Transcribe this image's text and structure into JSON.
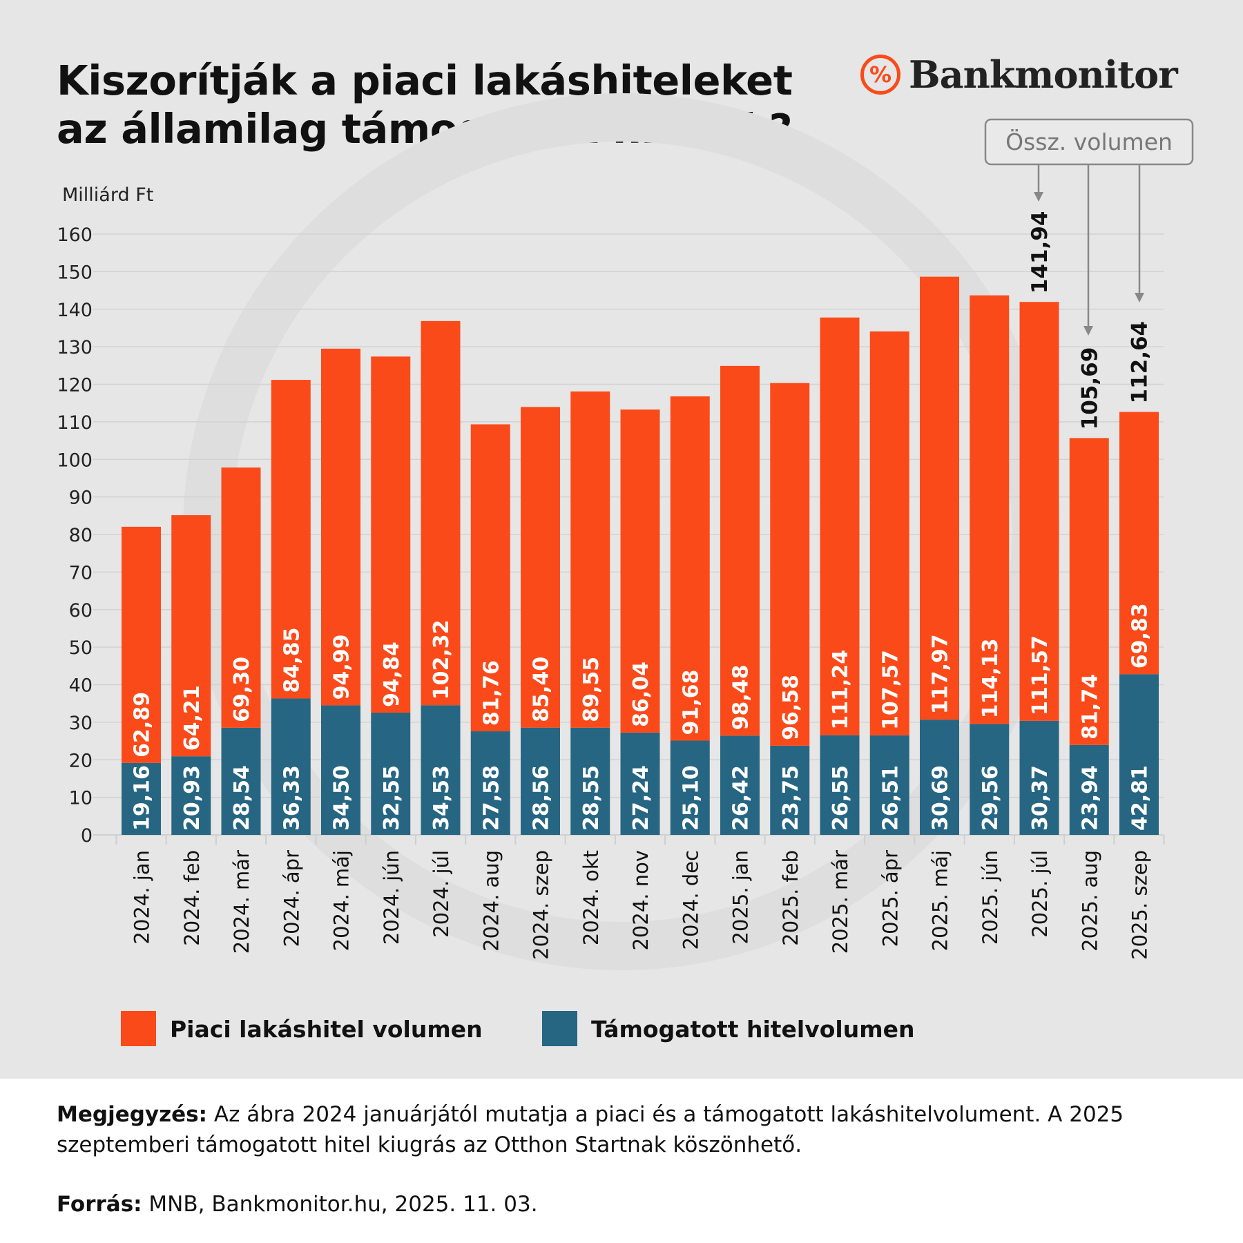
{
  "title_line1": "Kiszorítják a piaci lakáshiteleket",
  "title_line2": "az államilag támogatott hitelek?",
  "logo_text": "Bankmonitor",
  "logo_symbol": "%",
  "chart_data": {
    "type": "bar",
    "stacked": true,
    "ylabel": "Milliárd Ft",
    "ylim": [
      0,
      160
    ],
    "yticks": [
      0,
      10,
      20,
      30,
      40,
      50,
      60,
      70,
      80,
      90,
      100,
      110,
      120,
      130,
      140,
      150,
      160
    ],
    "grid": true,
    "categories": [
      "2024. jan",
      "2024. feb",
      "2024. már",
      "2024. ápr",
      "2024. máj",
      "2024. jún",
      "2024. júl",
      "2024. aug",
      "2024. szep",
      "2024. okt",
      "2024. nov",
      "2024. dec",
      "2025. jan",
      "2025. feb",
      "2025. már",
      "2025. ápr",
      "2025. máj",
      "2025. jún",
      "2025. júl",
      "2025. aug",
      "2025. szep"
    ],
    "series": [
      {
        "name": "Támogatott hitelvolumen",
        "color": "#266683",
        "values": [
          19.16,
          20.93,
          28.54,
          36.33,
          34.5,
          32.55,
          34.53,
          27.58,
          28.56,
          28.55,
          27.24,
          25.1,
          26.42,
          23.75,
          26.55,
          26.51,
          30.69,
          29.56,
          30.37,
          23.94,
          42.81
        ],
        "labels": [
          "19,16",
          "20,93",
          "28,54",
          "36,33",
          "34,50",
          "32,55",
          "34,53",
          "27,58",
          "28,56",
          "28,55",
          "27,24",
          "25,10",
          "26,42",
          "23,75",
          "26,55",
          "26,51",
          "30,69",
          "29,56",
          "30,37",
          "23,94",
          "42,81"
        ]
      },
      {
        "name": "Piaci lakáshitel volumen",
        "color": "#fb4a1a",
        "values": [
          62.89,
          64.21,
          69.3,
          84.85,
          94.99,
          94.84,
          102.32,
          81.76,
          85.4,
          89.55,
          86.04,
          91.68,
          98.48,
          96.58,
          111.24,
          107.57,
          117.97,
          114.13,
          111.57,
          81.74,
          69.83
        ],
        "labels": [
          "62,89",
          "64,21",
          "69,30",
          "84,85",
          "94,99",
          "94,84",
          "102,32",
          "81,76",
          "85,40",
          "89,55",
          "86,04",
          "91,68",
          "98,48",
          "96,58",
          "111,24",
          "107,57",
          "117,97",
          "114,13",
          "111,57",
          "81,74",
          "69,83"
        ]
      }
    ],
    "total_annotation": {
      "label": "Össz. volumen",
      "items": [
        {
          "category": "2025. júl",
          "value": 141.94,
          "text": "141,94"
        },
        {
          "category": "2025. aug",
          "value": 105.69,
          "text": "105,69"
        },
        {
          "category": "2025. szep",
          "value": 112.64,
          "text": "112,64"
        }
      ]
    },
    "legend": [
      {
        "label": "Piaci lakáshitel volumen",
        "color": "#fb4a1a"
      },
      {
        "label": "Támogatott hitelvolumen",
        "color": "#266683"
      }
    ],
    "legend_placement": "bottom"
  },
  "footer": {
    "note_label": "Megjegyzés:",
    "note_text": " Az ábra 2024 januárjától mutatja a piaci és a támogatott lakáshitelvolument. A 2025 szeptemberi támogatott hitel kiugrás az Otthon Startnak köszönhető.",
    "source_label": "Forrás:",
    "source_text": " MNB, Bankmonitor.hu, 2025. 11. 03."
  }
}
